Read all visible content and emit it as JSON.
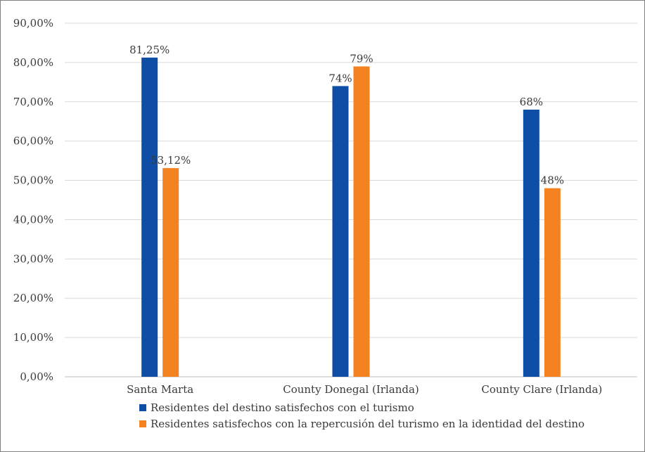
{
  "chart_data": {
    "type": "bar",
    "categories": [
      "Santa Marta",
      "County Donegal (Irlanda)",
      "County Clare (Irlanda)"
    ],
    "series": [
      {
        "name": "Residentes del destino satisfechos con el turismo",
        "values": [
          81.25,
          74,
          68
        ],
        "labels": [
          "81,25%",
          "74%",
          "68%"
        ],
        "color": "#0e4ea6"
      },
      {
        "name": "Residentes satisfechos con la repercusión del turismo en la identidad del destino",
        "values": [
          53.12,
          79,
          48
        ],
        "labels": [
          "53,12%",
          "79%",
          "48%"
        ],
        "color": "#f58220"
      }
    ],
    "yticks": [
      "0,00%",
      "10,00%",
      "20,00%",
      "30,00%",
      "40,00%",
      "50,00%",
      "60,00%",
      "70,00%",
      "80,00%",
      "90,00%"
    ],
    "ylim": [
      0,
      90
    ],
    "grid": true,
    "legend_position": "bottom"
  }
}
